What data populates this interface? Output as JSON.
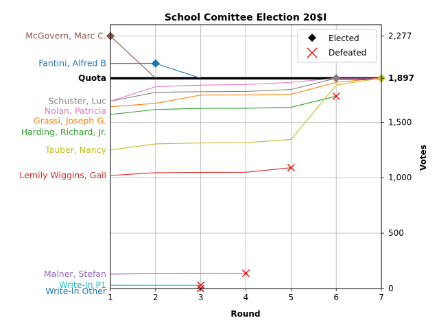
{
  "chart_data": {
    "type": "line",
    "title": "School Comittee Election 20$I",
    "xlabel": "Round",
    "ylabel": "Votes",
    "x": [
      1,
      2,
      3,
      4,
      5,
      6,
      7
    ],
    "xlim": [
      1,
      7
    ],
    "ylim": [
      0,
      2380
    ],
    "yticks": [
      0,
      500,
      1000,
      1500,
      1897,
      2277
    ],
    "ytick_labels": [
      "0",
      "500",
      "1,000",
      "1,500",
      "1,897",
      "2,277"
    ],
    "grid": true,
    "quota": {
      "label": "Quota",
      "value": 1897,
      "color": "#000000"
    },
    "legend": {
      "placement": "top-right",
      "entries": [
        {
          "label": "Elected",
          "marker": "diamond",
          "color": "#000000"
        },
        {
          "label": "Defeated",
          "marker": "x",
          "color": "#ff0000"
        }
      ]
    },
    "series": [
      {
        "name": "McGovern, Marc C.",
        "color": "#8c564b",
        "label_value": 2277,
        "values": [
          2277,
          1897,
          null,
          null,
          null,
          null,
          null
        ],
        "elected_round": 1
      },
      {
        "name": "Fantini, Alfred B",
        "color": "#1f77b4",
        "label_value": 2030,
        "values": [
          2030,
          2030,
          1897,
          null,
          null,
          null,
          null
        ],
        "elected_round": 2
      },
      {
        "name": "Schuster, Luc",
        "color": "#7f7f7f",
        "label_value": 1690,
        "values": [
          1690,
          1770,
          1775,
          1778,
          1795,
          1897,
          null
        ],
        "elected_round": 6
      },
      {
        "name": "Nolan, Patricia",
        "color": "#e377c2",
        "label_value": 1600,
        "values": [
          1690,
          1820,
          1835,
          1840,
          1860,
          1897,
          1897
        ],
        "elected_round": null
      },
      {
        "name": "Grassi, Joseph G.",
        "color": "#ff7f0e",
        "label_value": 1510,
        "values": [
          1640,
          1670,
          1745,
          1746,
          1752,
          1860,
          1897
        ],
        "elected_round": null
      },
      {
        "name": "Harding, Richard, Jr.",
        "color": "#2ca02c",
        "label_value": 1410,
        "values": [
          1570,
          1615,
          1625,
          1626,
          1635,
          1735,
          null
        ],
        "defeated_round": 6
      },
      {
        "name": "Tauber, Nancy",
        "color": "#bcbd22",
        "label_value": 1250,
        "values": [
          1250,
          1305,
          1313,
          1316,
          1345,
          1835,
          1897
        ],
        "elected_round": 7
      },
      {
        "name": "Lemily Wiggins, Gail",
        "color": "#d62728",
        "label_value": 1020,
        "values": [
          1020,
          1045,
          1048,
          1049,
          1090,
          null,
          null
        ],
        "defeated_round": 5
      },
      {
        "name": "Malner, Stefan",
        "color": "#9467bd",
        "label_value": 130,
        "values": [
          130,
          135,
          137,
          138,
          null,
          null,
          null
        ],
        "defeated_round": 4
      },
      {
        "name": "Write-In P1",
        "color": "#17becf",
        "label_value": 30,
        "values": [
          30,
          30,
          30,
          null,
          null,
          null,
          null
        ],
        "defeated_round": 3
      },
      {
        "name": "Write-In Other",
        "color": "#1f77b4",
        "label_value": -25,
        "values": [
          0,
          0,
          0,
          null,
          null,
          null,
          null
        ],
        "defeated_round": 3
      }
    ]
  }
}
